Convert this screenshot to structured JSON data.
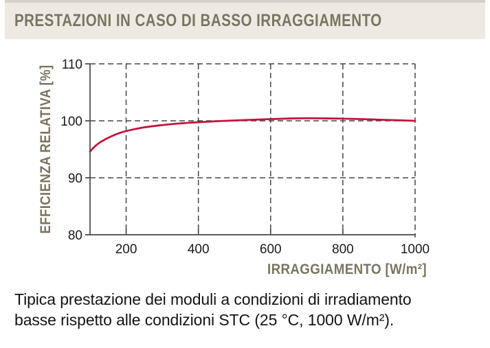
{
  "header": {
    "title": "PRESTAZIONI IN CASO DI BASSO IRRAGGIAMENTO"
  },
  "caption": {
    "line1": "Tipica prestazione dei moduli a condizioni di irradiamento",
    "line2": "basse rispetto alle condizioni STC (25 °C, 1000 W/m²)."
  },
  "colors": {
    "title_olive": "#7a7560",
    "curve_red": "#c2143c",
    "axis_gray": "#454545",
    "tick_text": "#1b1b1b",
    "header_bg": "#eeeae3",
    "header_top_strip": "#d4d1ca"
  },
  "chart_data": {
    "type": "line",
    "title": "",
    "xlabel": "IRRAGGIAMENTO [W/m²]",
    "ylabel": "EFFICIENZA RELATIVA [%]",
    "xlim": [
      100,
      1000
    ],
    "ylim": [
      80,
      110
    ],
    "x_ticks": [
      200,
      400,
      600,
      800,
      1000
    ],
    "y_ticks": [
      80,
      90,
      100,
      110
    ],
    "grid": "dashed",
    "legend": "none",
    "series": [
      {
        "name": "Efficienza relativa",
        "color": "#c2143c",
        "x": [
          100,
          110,
          125,
          150,
          175,
          200,
          250,
          300,
          350,
          400,
          450,
          500,
          550,
          600,
          650,
          700,
          750,
          800,
          850,
          900,
          950,
          1000
        ],
        "y": [
          94.6,
          95.3,
          96.1,
          97.0,
          97.7,
          98.2,
          98.85,
          99.25,
          99.55,
          99.75,
          99.92,
          100.06,
          100.18,
          100.3,
          100.4,
          100.45,
          100.43,
          100.38,
          100.3,
          100.2,
          100.1,
          100.0
        ]
      }
    ]
  }
}
